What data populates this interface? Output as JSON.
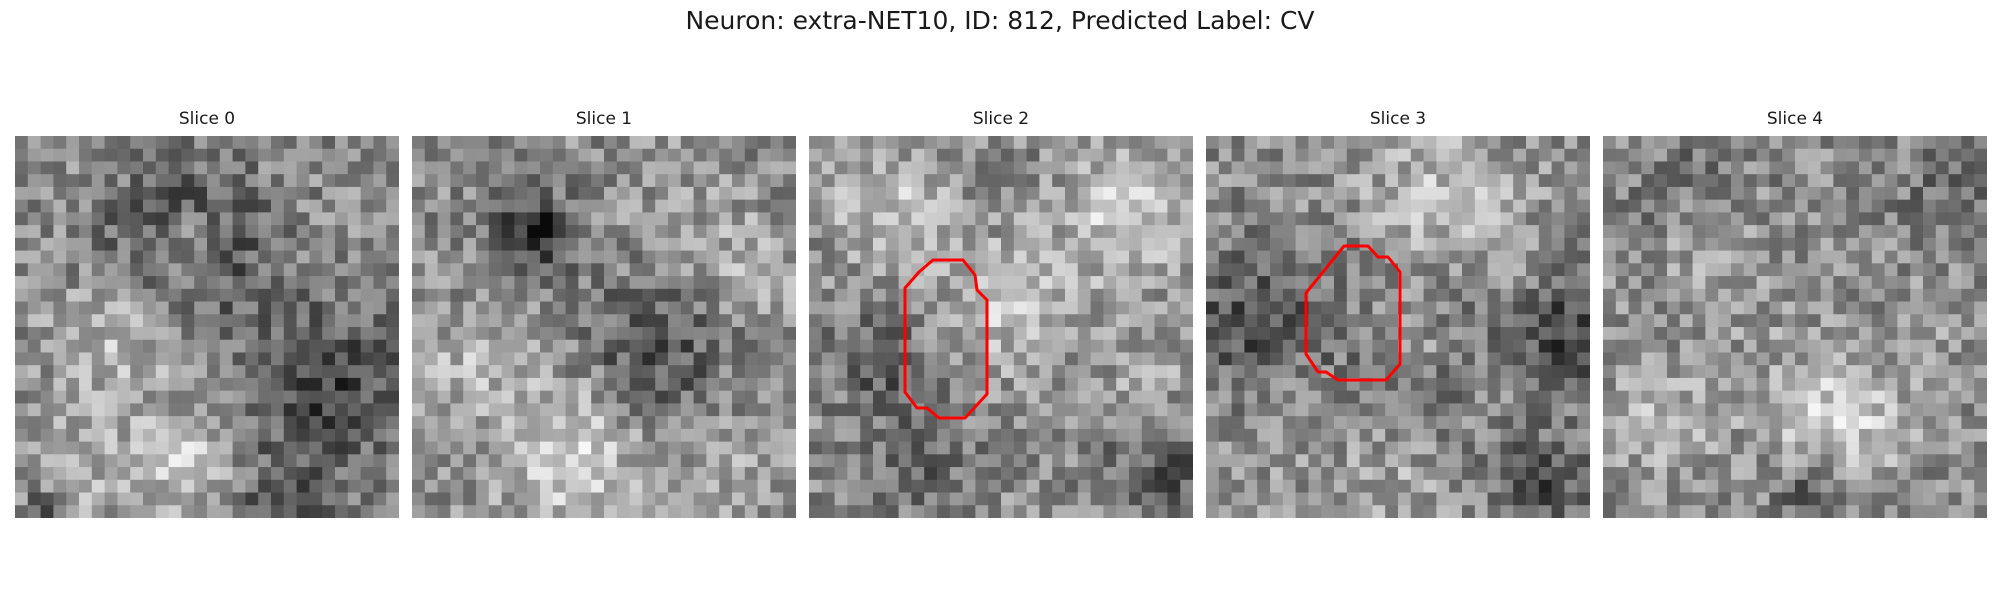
{
  "figure": {
    "title": "Neuron: extra-NET10, ID: 812, Predicted Label: CV"
  },
  "slices": [
    {
      "title": "Slice 0"
    },
    {
      "title": "Slice 1"
    },
    {
      "title": "Slice 2"
    },
    {
      "title": "Slice 3"
    },
    {
      "title": "Slice 4"
    }
  ],
  "colors": {
    "contour": "#ff0000"
  }
}
